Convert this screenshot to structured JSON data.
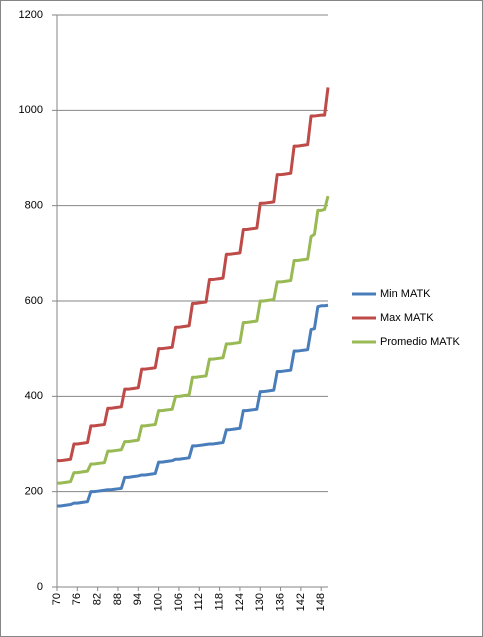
{
  "chart_data": {
    "type": "line",
    "x": [
      70,
      71,
      72,
      73,
      74,
      75,
      76,
      77,
      78,
      79,
      80,
      81,
      82,
      83,
      84,
      85,
      86,
      87,
      88,
      89,
      90,
      91,
      92,
      93,
      94,
      95,
      96,
      97,
      98,
      99,
      100,
      101,
      102,
      103,
      104,
      105,
      106,
      107,
      108,
      109,
      110,
      111,
      112,
      113,
      114,
      115,
      116,
      117,
      118,
      119,
      120,
      121,
      122,
      123,
      124,
      125,
      126,
      127,
      128,
      129,
      130,
      131,
      132,
      133,
      134,
      135,
      136,
      137,
      138,
      139,
      140,
      141,
      142,
      143,
      144,
      145,
      146,
      147,
      148,
      149,
      150
    ],
    "series": [
      {
        "name": "Min MATK",
        "color": "#4a7ebb",
        "values": [
          170,
          170,
          171,
          172,
          173,
          176,
          176,
          177,
          178,
          179,
          200,
          200,
          201,
          202,
          203,
          204,
          204,
          205,
          206,
          207,
          230,
          230,
          231,
          232,
          233,
          235,
          235,
          236,
          237,
          238,
          262,
          262,
          263,
          264,
          265,
          268,
          268,
          269,
          270,
          271,
          296,
          296,
          297,
          298,
          299,
          300,
          300,
          301,
          302,
          303,
          330,
          330,
          331,
          332,
          333,
          370,
          370,
          371,
          372,
          373,
          410,
          410,
          411,
          412,
          413,
          452,
          452,
          453,
          454,
          455,
          495,
          495,
          496,
          497,
          498,
          540,
          542,
          588,
          590,
          590,
          591
        ]
      },
      {
        "name": "Max MATK",
        "color": "#be4b48",
        "values": [
          265,
          265,
          266,
          267,
          268,
          300,
          300,
          301,
          302,
          303,
          338,
          338,
          339,
          340,
          341,
          375,
          375,
          376,
          377,
          378,
          415,
          415,
          416,
          417,
          418,
          457,
          457,
          458,
          459,
          460,
          500,
          500,
          501,
          502,
          503,
          545,
          545,
          546,
          547,
          548,
          595,
          595,
          596,
          597,
          598,
          645,
          645,
          646,
          647,
          648,
          698,
          698,
          699,
          700,
          701,
          750,
          750,
          751,
          752,
          753,
          805,
          805,
          806,
          807,
          808,
          865,
          865,
          866,
          867,
          868,
          925,
          925,
          926,
          927,
          928,
          988,
          988,
          989,
          990,
          990,
          1048
        ]
      },
      {
        "name": "Promedio MATK",
        "color": "#98b954",
        "values": [
          218,
          218,
          219,
          220,
          221,
          240,
          240,
          241,
          242,
          243,
          258,
          258,
          259,
          260,
          261,
          285,
          285,
          286,
          287,
          288,
          305,
          305,
          306,
          307,
          308,
          338,
          338,
          339,
          340,
          341,
          370,
          370,
          371,
          372,
          373,
          400,
          400,
          401,
          402,
          403,
          440,
          440,
          441,
          442,
          443,
          478,
          478,
          479,
          480,
          481,
          510,
          510,
          511,
          512,
          513,
          555,
          555,
          556,
          557,
          558,
          600,
          600,
          601,
          602,
          603,
          640,
          640,
          641,
          642,
          643,
          685,
          685,
          686,
          687,
          688,
          735,
          740,
          790,
          790,
          792,
          820
        ]
      }
    ],
    "xlim": [
      70,
      150
    ],
    "xticks": [
      70,
      76,
      82,
      88,
      94,
      100,
      106,
      112,
      118,
      124,
      130,
      136,
      142,
      148
    ],
    "ylim": [
      0,
      1200
    ],
    "yticks": [
      0,
      200,
      400,
      600,
      800,
      1000,
      1200
    ],
    "grid": true,
    "legend": "right"
  }
}
